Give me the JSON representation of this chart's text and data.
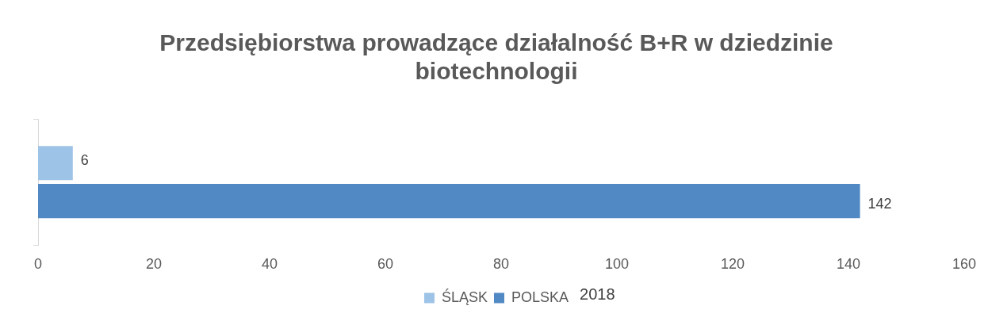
{
  "chart_data": {
    "type": "bar",
    "orientation": "horizontal",
    "title": "Przedsiębiorstwa prowadzące działalność B+R w dziedzinie biotechnologii",
    "categories": [
      null
    ],
    "series": [
      {
        "name": "ŚLĄSK",
        "color": "#9dc3e6",
        "values": [
          6
        ]
      },
      {
        "name": "POLSKA",
        "color": "#5089c4",
        "values": [
          142
        ]
      }
    ],
    "xlim": [
      0,
      160
    ],
    "xticks": [
      0,
      20,
      40,
      60,
      80,
      100,
      120,
      140,
      160
    ],
    "grid": false,
    "legend": "bottom",
    "data_labels": true,
    "annotations": [
      "2018"
    ]
  }
}
